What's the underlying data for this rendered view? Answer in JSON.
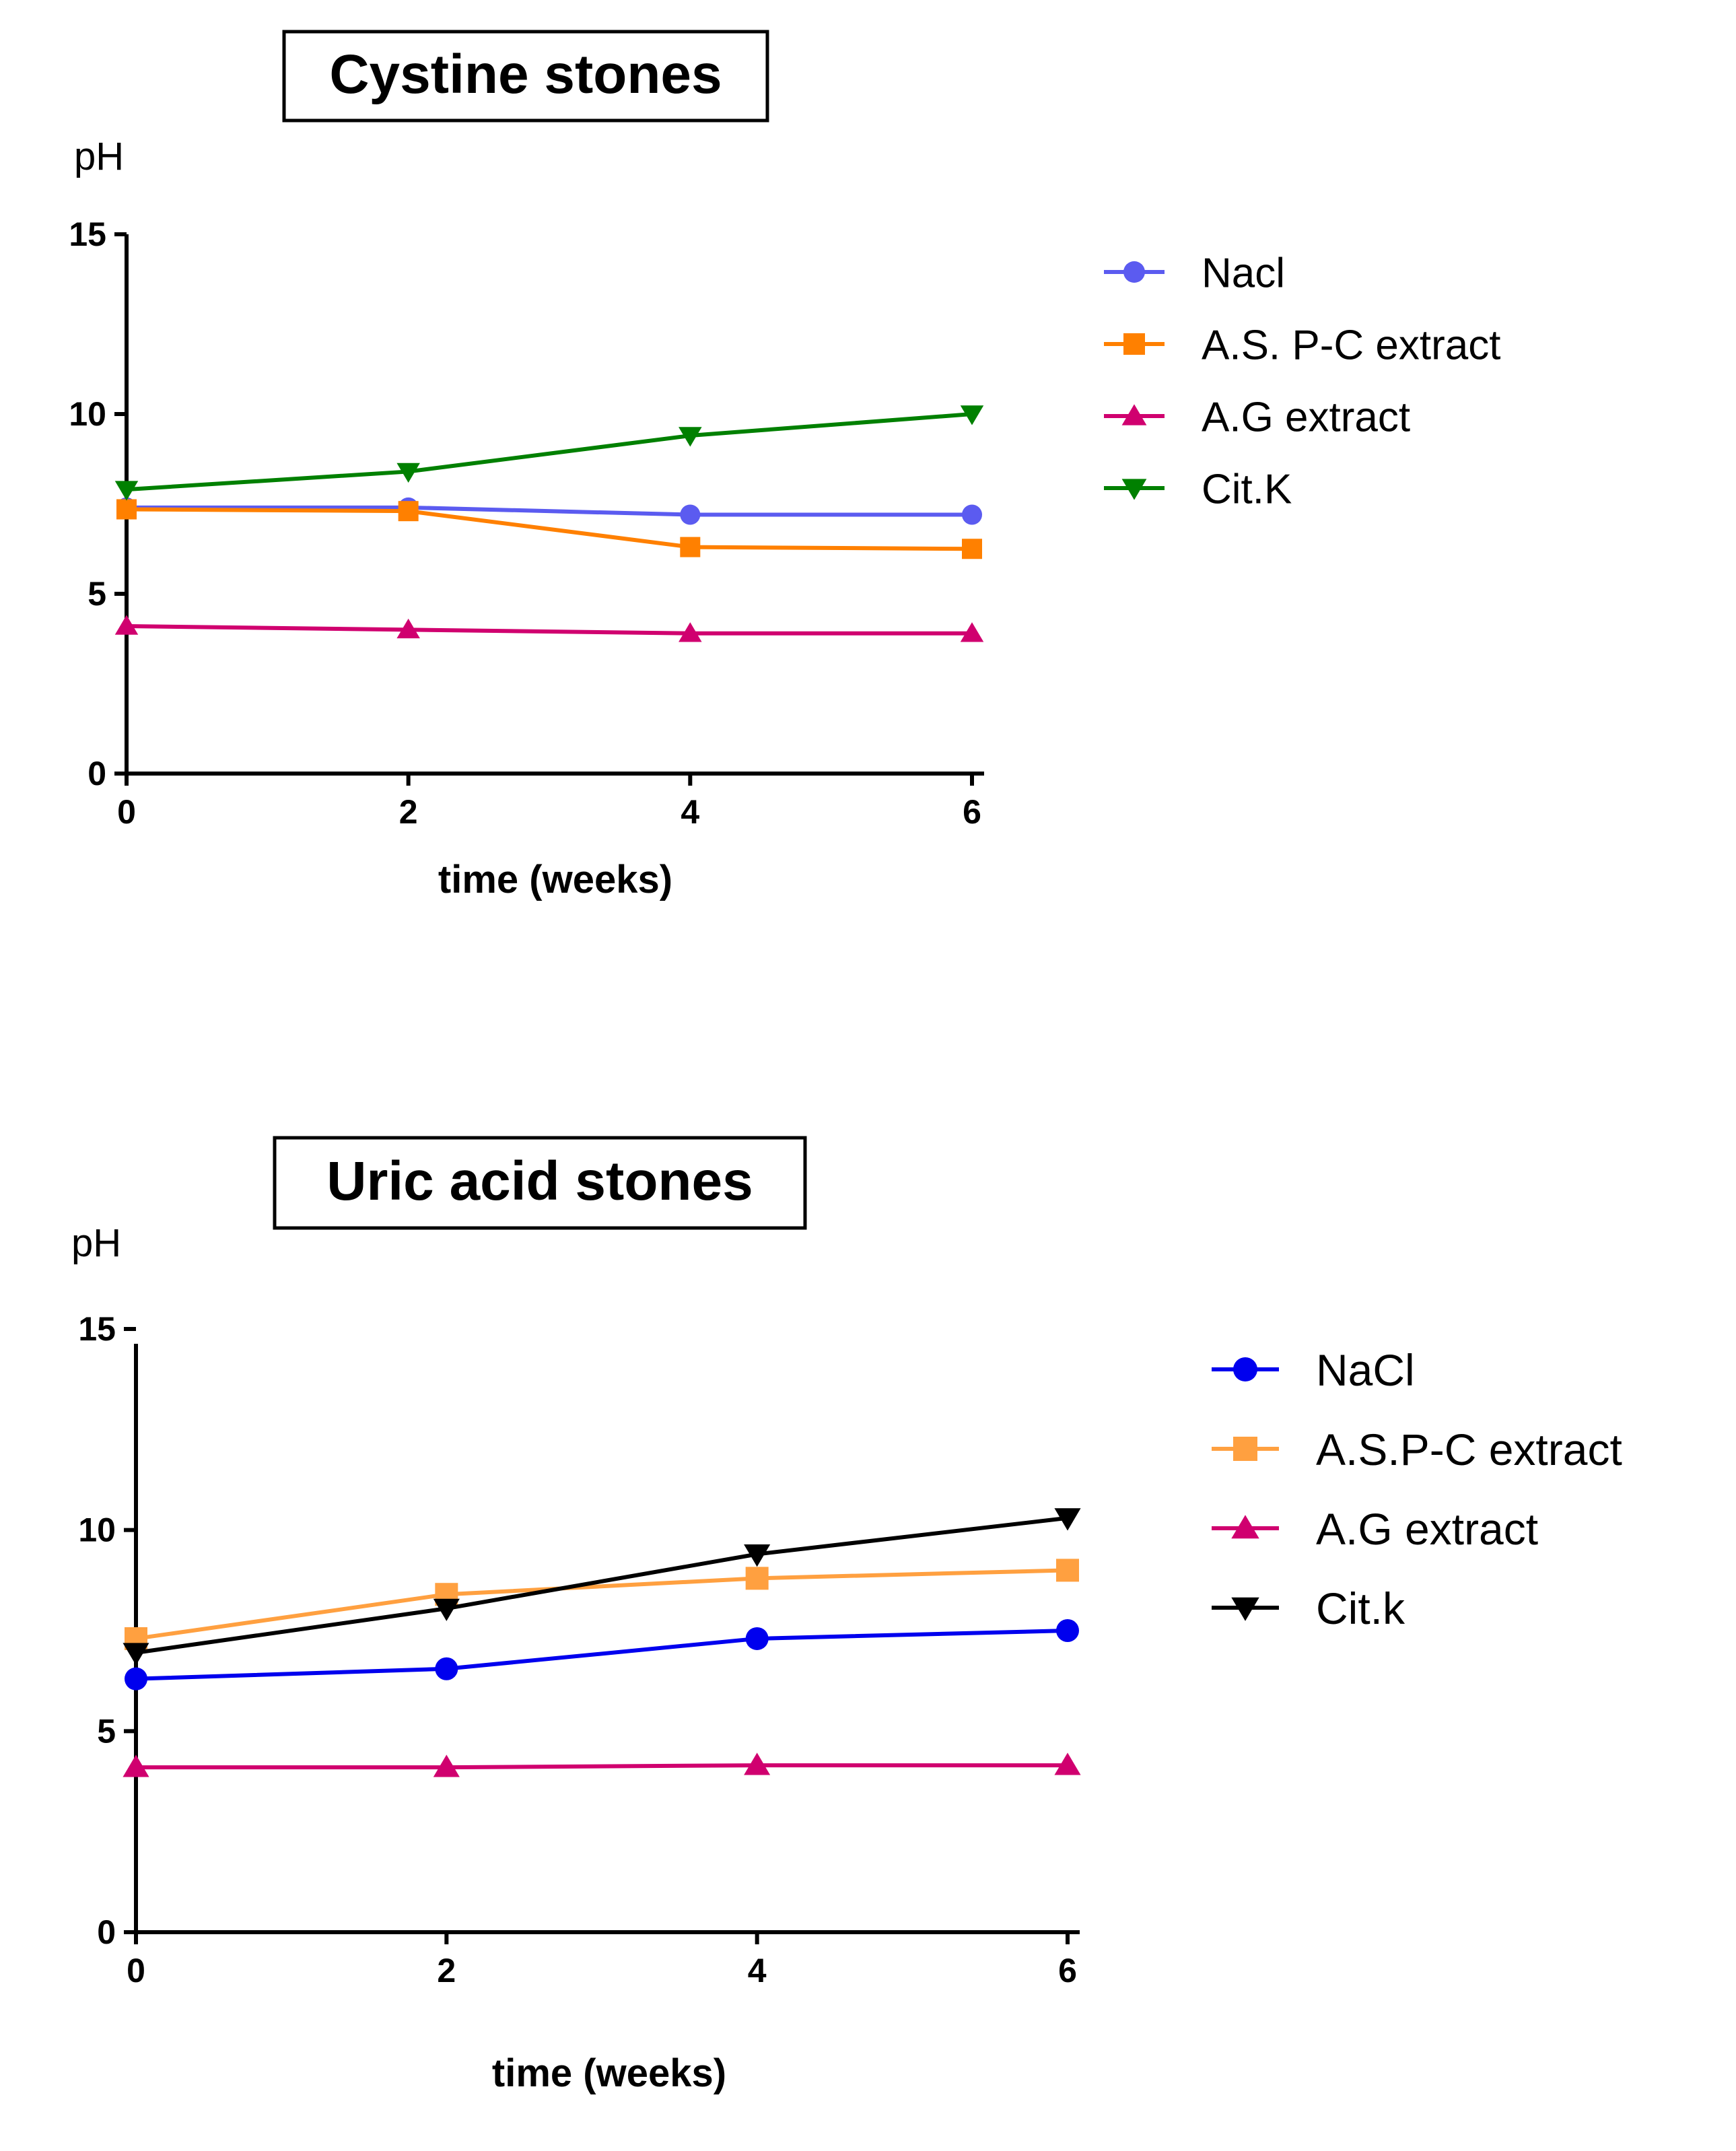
{
  "chart_data": [
    {
      "type": "line",
      "title": "Cystine stones",
      "xlabel": "time (weeks)",
      "ylabel": "pH",
      "x": [
        0,
        2,
        4,
        6
      ],
      "xticks": [
        "0",
        "2",
        "4",
        "6"
      ],
      "yticks": [
        "0",
        "5",
        "10",
        "15"
      ],
      "xlim": [
        0,
        6
      ],
      "ylim": [
        0,
        15
      ],
      "grid": false,
      "legend_position": "right",
      "series": [
        {
          "name": "Nacl",
          "values": [
            7.4,
            7.4,
            7.2,
            7.2
          ],
          "color": "#5b5bf0",
          "marker": "circle"
        },
        {
          "name": "A.S. P-C extract",
          "values": [
            7.35,
            7.3,
            6.3,
            6.25
          ],
          "color": "#ff8000",
          "marker": "square"
        },
        {
          "name": "A.G extract",
          "values": [
            4.1,
            4.0,
            3.9,
            3.9
          ],
          "color": "#d0006f",
          "marker": "triangle-up"
        },
        {
          "name": "Cit.K",
          "values": [
            7.9,
            8.4,
            9.4,
            10.0
          ],
          "color": "#008000",
          "marker": "triangle-down"
        }
      ]
    },
    {
      "type": "line",
      "title": "Uric acid stones",
      "xlabel": "time (weeks)",
      "ylabel": "pH",
      "x": [
        0,
        2,
        4,
        6
      ],
      "xticks": [
        "0",
        "2",
        "4",
        "6"
      ],
      "yticks": [
        "0",
        "5",
        "10",
        "15"
      ],
      "xlim": [
        0,
        6
      ],
      "ylim": [
        0,
        15
      ],
      "grid": false,
      "legend_position": "right",
      "series": [
        {
          "name": "NaCl",
          "values": [
            6.3,
            6.55,
            7.3,
            7.5
          ],
          "color": "#0000ee",
          "marker": "circle"
        },
        {
          "name": "A.S.P-C extract",
          "values": [
            7.3,
            8.4,
            8.8,
            9.0
          ],
          "color": "#ffa040",
          "marker": "square"
        },
        {
          "name": "A.G extract",
          "values": [
            4.1,
            4.1,
            4.15,
            4.15
          ],
          "color": "#d0006f",
          "marker": "triangle-up"
        },
        {
          "name": "Cit.k",
          "values": [
            6.95,
            8.05,
            9.4,
            10.3
          ],
          "color": "#000000",
          "marker": "triangle-down"
        }
      ]
    }
  ]
}
